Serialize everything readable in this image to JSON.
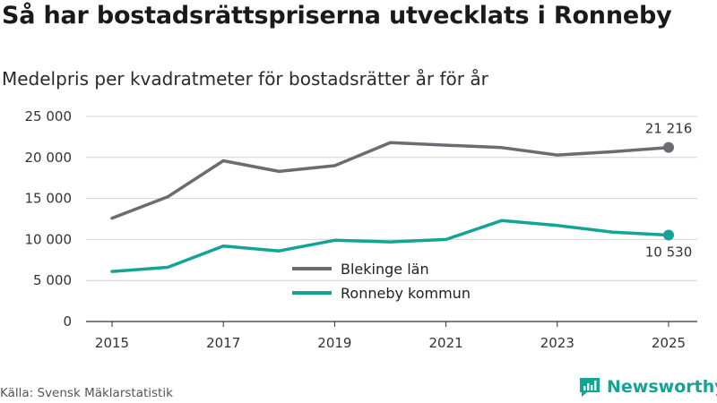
{
  "title": "Så har bostadsrättspriserna utvecklats i Ronneby",
  "subtitle": "Medelpris per kvadratmeter för bostadsrätter år för år",
  "source": "Källa: Svensk Mäklarstatistik",
  "brand": "Newsworthy",
  "colors": {
    "blekinge": "#6d6b71",
    "ronneby": "#12a596",
    "grid": "#d4d4d4",
    "axis": "#333333"
  },
  "chart_data": {
    "type": "line",
    "x": [
      2015,
      2016,
      2017,
      2018,
      2019,
      2020,
      2021,
      2022,
      2023,
      2024,
      2025
    ],
    "x_ticks": [
      2015,
      2017,
      2019,
      2021,
      2023,
      2025
    ],
    "x_tick_labels": [
      "2015",
      "2017",
      "2019",
      "2021",
      "2023",
      "2025"
    ],
    "y_ticks": [
      0,
      5000,
      10000,
      15000,
      20000,
      25000
    ],
    "y_tick_labels": [
      "0",
      "5 000",
      "10 000",
      "15 000",
      "20 000",
      "25 000"
    ],
    "ylim": [
      0,
      25000
    ],
    "xlabel": "",
    "ylabel": "",
    "grid": true,
    "legend": "center",
    "series": [
      {
        "name": "Blekinge län",
        "key": "blekinge",
        "values": [
          12600,
          15200,
          19600,
          18300,
          19000,
          21800,
          21500,
          21200,
          20300,
          20700,
          21216
        ]
      },
      {
        "name": "Ronneby kommun",
        "key": "ronneby",
        "values": [
          6100,
          6600,
          9200,
          8600,
          9900,
          9700,
          10000,
          12300,
          11700,
          10900,
          10530
        ]
      }
    ],
    "end_labels": [
      "21 216",
      "10 530"
    ]
  }
}
